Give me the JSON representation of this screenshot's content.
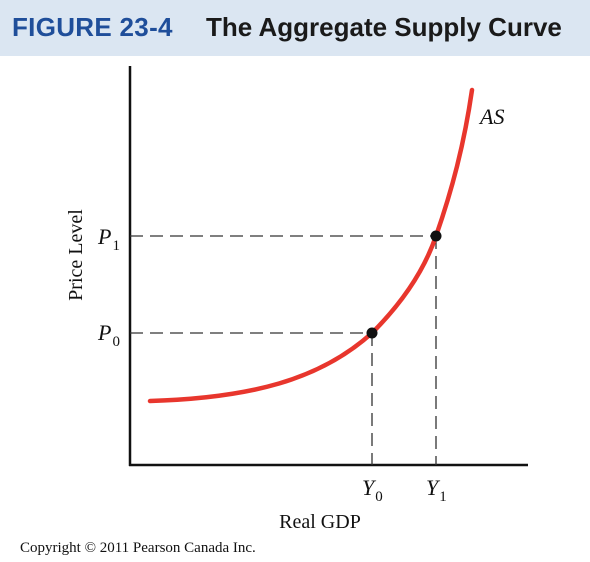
{
  "figure": {
    "label": "FIGURE 23-4",
    "title": "The Aggregate Supply Curve"
  },
  "axes": {
    "xlabel": "Real GDP",
    "ylabel": "Price Level"
  },
  "curve": {
    "name": "AS",
    "color": "#e8362d"
  },
  "points": [
    {
      "name": "point-0",
      "x_label": "Y",
      "x_sub": "0",
      "y_label": "P",
      "y_sub": "0"
    },
    {
      "name": "point-1",
      "x_label": "Y",
      "x_sub": "1",
      "y_label": "P",
      "y_sub": "1"
    }
  ],
  "copyright": "Copyright © 2011 Pearson Canada Inc."
}
